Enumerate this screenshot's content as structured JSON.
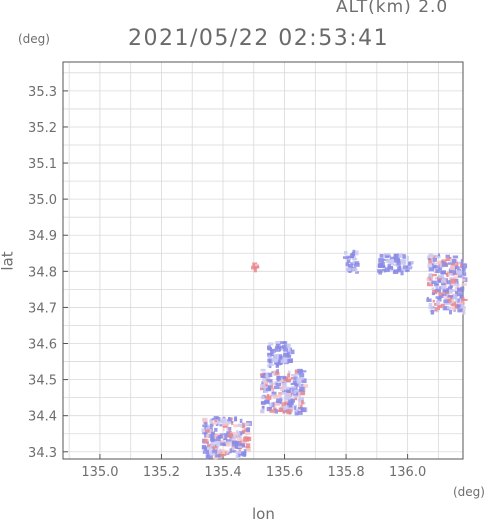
{
  "header": {
    "alt_label": "ALT(km) 2.0",
    "datetime": "2021/05/22 02:53:41"
  },
  "chart_data": {
    "type": "heatmap",
    "title": "2021/05/22 02:53:41",
    "subtitle": "ALT(km) 2.0",
    "xlabel": "lon",
    "ylabel": "lat",
    "x_unit": "(deg)",
    "y_unit": "(deg)",
    "xlim": [
      134.88,
      136.18
    ],
    "ylim": [
      34.28,
      35.38
    ],
    "grid": true,
    "x_ticks": [
      "135.0",
      "135.2",
      "135.4",
      "135.6",
      "135.8",
      "136.0"
    ],
    "y_ticks": [
      "34.3",
      "34.4",
      "34.5",
      "34.6",
      "34.7",
      "34.8",
      "34.9",
      "35.0",
      "35.1",
      "35.2",
      "35.3"
    ],
    "colors": {
      "positive": "#e9868c",
      "negative": "#8a8ae6",
      "light_positive": "#f3c9cc",
      "light_negative": "#c9c9f3"
    },
    "clusters": [
      {
        "name": "cluster-osaka-south",
        "lon": [
          135.33,
          135.48
        ],
        "lat": [
          34.29,
          34.4
        ],
        "sign": "mixed"
      },
      {
        "name": "cluster-osaka-center",
        "lon": [
          135.54,
          135.62
        ],
        "lat": [
          34.54,
          34.61
        ],
        "sign": "negative"
      },
      {
        "name": "cluster-osaka-mid",
        "lon": [
          135.52,
          135.66
        ],
        "lat": [
          34.41,
          34.53
        ],
        "sign": "mixed"
      },
      {
        "name": "cluster-north-east",
        "lon": [
          135.9,
          136.01
        ],
        "lat": [
          34.8,
          34.85
        ],
        "sign": "negative"
      },
      {
        "name": "cluster-east-edge",
        "lon": [
          136.06,
          136.18
        ],
        "lat": [
          34.69,
          34.85
        ],
        "sign": "mixed"
      },
      {
        "name": "cluster-sparse-north",
        "lon": [
          135.49,
          135.51
        ],
        "lat": [
          34.8,
          34.83
        ],
        "sign": "positive"
      },
      {
        "name": "cluster-sparse-mid",
        "lon": [
          135.79,
          135.83
        ],
        "lat": [
          34.8,
          34.86
        ],
        "sign": "negative"
      }
    ]
  }
}
